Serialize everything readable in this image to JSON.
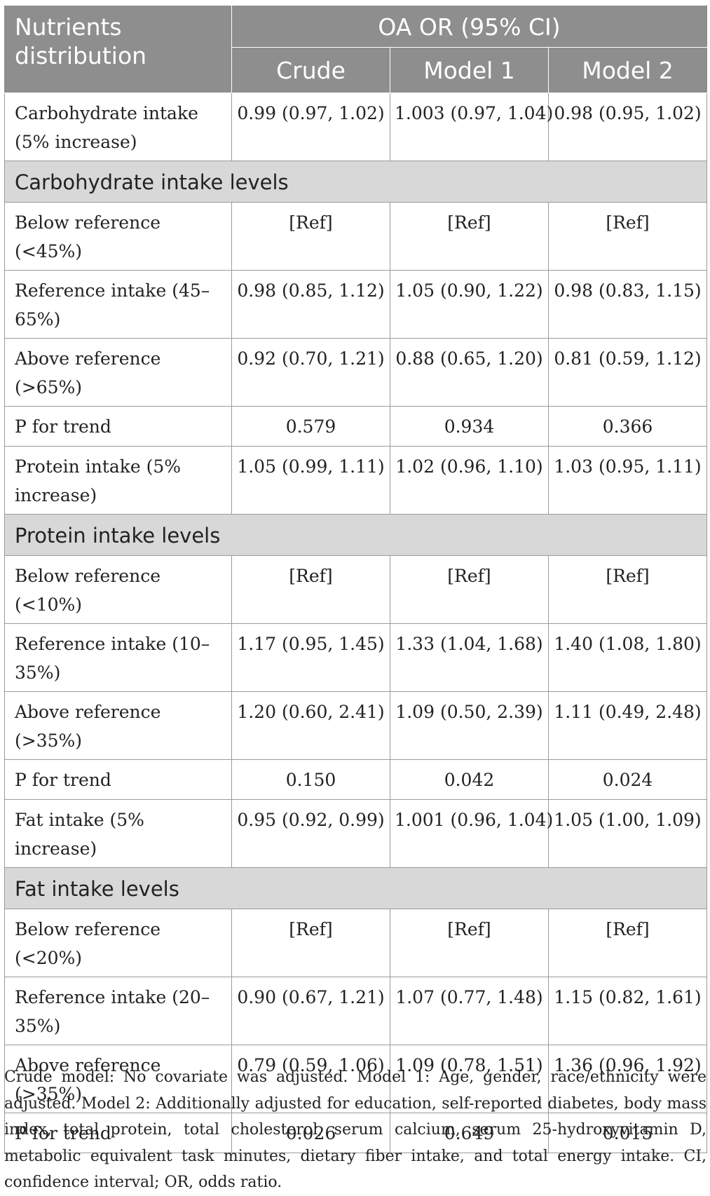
{
  "header": {
    "row_label": "Nutrients distribution",
    "group_label": "OA OR (95% CI)",
    "columns": [
      "Crude",
      "Model 1",
      "Model 2"
    ]
  },
  "rows": [
    {
      "type": "data",
      "label": "Carbohydrate intake (5% increase)",
      "values": [
        "0.99 (0.97, 1.02)",
        "1.003 (0.97, 1.04)",
        "0.98 (0.95, 1.02)"
      ]
    },
    {
      "type": "section",
      "label": "Carbohydrate intake levels"
    },
    {
      "type": "data",
      "label": "Below reference (<45%)",
      "values": [
        "[Ref]",
        "[Ref]",
        "[Ref]"
      ]
    },
    {
      "type": "data",
      "label": "Reference intake (45–65%)",
      "values": [
        "0.98 (0.85, 1.12)",
        "1.05 (0.90, 1.22)",
        "0.98 (0.83, 1.15)"
      ]
    },
    {
      "type": "data",
      "label": "Above reference (>65%)",
      "values": [
        "0.92 (0.70, 1.21)",
        "0.88 (0.65, 1.20)",
        "0.81 (0.59, 1.12)"
      ]
    },
    {
      "type": "data",
      "label": "P for trend",
      "values": [
        "0.579",
        "0.934",
        "0.366"
      ]
    },
    {
      "type": "data",
      "label": "Protein intake (5% increase)",
      "values": [
        "1.05 (0.99, 1.11)",
        "1.02 (0.96, 1.10)",
        "1.03 (0.95, 1.11)"
      ]
    },
    {
      "type": "section",
      "label": "Protein intake levels"
    },
    {
      "type": "data",
      "label": "Below reference (<10%)",
      "values": [
        "[Ref]",
        "[Ref]",
        "[Ref]"
      ]
    },
    {
      "type": "data",
      "label": "Reference intake (10–35%)",
      "values": [
        "1.17 (0.95, 1.45)",
        "1.33 (1.04, 1.68)",
        "1.40 (1.08, 1.80)"
      ]
    },
    {
      "type": "data",
      "label": "Above reference (>35%)",
      "values": [
        "1.20 (0.60, 2.41)",
        "1.09 (0.50, 2.39)",
        "1.11 (0.49, 2.48)"
      ]
    },
    {
      "type": "data",
      "label": "P for trend",
      "values": [
        "0.150",
        "0.042",
        "0.024"
      ]
    },
    {
      "type": "data",
      "label": "Fat intake (5% increase)",
      "values": [
        "0.95 (0.92, 0.99)",
        "1.001 (0.96, 1.04)",
        "1.05 (1.00, 1.09)"
      ]
    },
    {
      "type": "section",
      "label": "Fat intake levels"
    },
    {
      "type": "data",
      "label": "Below reference (<20%)",
      "values": [
        "[Ref]",
        "[Ref]",
        "[Ref]"
      ]
    },
    {
      "type": "data",
      "label": "Reference intake (20–35%)",
      "values": [
        "0.90 (0.67, 1.21)",
        "1.07 (0.77, 1.48)",
        "1.15 (0.82, 1.61)"
      ]
    },
    {
      "type": "data",
      "label": "Above reference (>35%)",
      "values": [
        "0.79 (0.59, 1.06)",
        "1.09 (0.78, 1.51)",
        "1.36 (0.96, 1.92)"
      ]
    },
    {
      "type": "data",
      "label": "P for trend",
      "values": [
        "0.026",
        "0.649",
        "0.015"
      ]
    }
  ],
  "footnote": "Crude model: No covariate was adjusted. Model 1: Age, gender, race/ethnicity were adjusted. Model 2: Additionally adjusted for education, self-reported diabetes, body mass index, total protein, total cholesterol, serum calcium, serum 25-hydroxyvitamin D, metabolic equivalent task minutes, dietary fiber intake, and total energy intake. CI, confidence interval; OR, odds ratio.",
  "colors": {
    "header_bg": "#8e8e8e",
    "section_bg": "#d8d8d8",
    "border": "#9a9a9a",
    "text": "#222222"
  }
}
